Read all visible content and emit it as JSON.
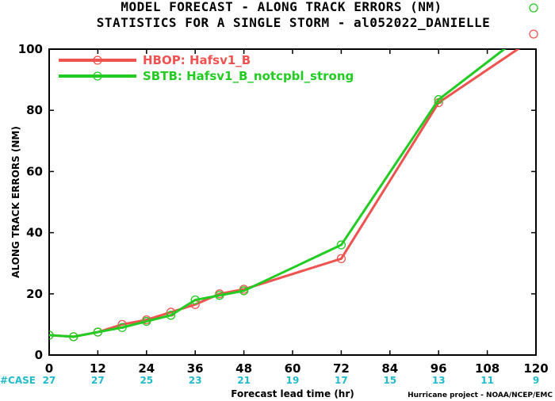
{
  "chart_data": {
    "type": "line",
    "title": "MODEL FORECAST - ALONG TRACK ERRORS (NM)",
    "subtitle": "STATISTICS FOR A SINGLE STORM - al052022_DANIELLE",
    "xlabel": "Forecast lead time (hr)",
    "ylabel": "ALONG TRACK ERRORS (NM)",
    "xlim": [
      0,
      120
    ],
    "ylim": [
      0,
      100
    ],
    "xticks": [
      0,
      12,
      24,
      36,
      48,
      60,
      72,
      84,
      96,
      108,
      120
    ],
    "yticks": [
      0,
      20,
      40,
      60,
      80,
      100
    ],
    "grid": false,
    "legend_position": "top-left",
    "series": [
      {
        "name": "HBOP: Hafsv1_B",
        "color": "#ef5350",
        "x": [
          0,
          6,
          12,
          18,
          24,
          30,
          36,
          42,
          48,
          72,
          96,
          120
        ],
        "y": [
          6.5,
          6.0,
          7.5,
          10.0,
          11.5,
          14.0,
          16.5,
          20.0,
          21.5,
          31.5,
          82.5,
          104.0
        ]
      },
      {
        "name": "SBTB: Hafsv1_B_notcpbl_strong",
        "color": "#22cc22",
        "x": [
          0,
          6,
          12,
          18,
          24,
          30,
          36,
          42,
          48,
          72,
          96,
          120
        ],
        "y": [
          6.5,
          6.0,
          7.5,
          9.0,
          11.0,
          13.0,
          18.0,
          19.5,
          21.0,
          36.0,
          83.5,
          108.0
        ]
      }
    ],
    "case_label": "#CASE",
    "case_hours": [
      0,
      12,
      24,
      36,
      48,
      60,
      72,
      84,
      96,
      108,
      120
    ],
    "case_counts": [
      "27",
      "27",
      "25",
      "23",
      "21",
      "19",
      "17",
      "15",
      "13",
      "11",
      "9"
    ],
    "credit": "Hurricane project - NOAA/NCEP/EMC",
    "colors": {
      "case": "#22bbcc",
      "axis": "#000000"
    }
  }
}
